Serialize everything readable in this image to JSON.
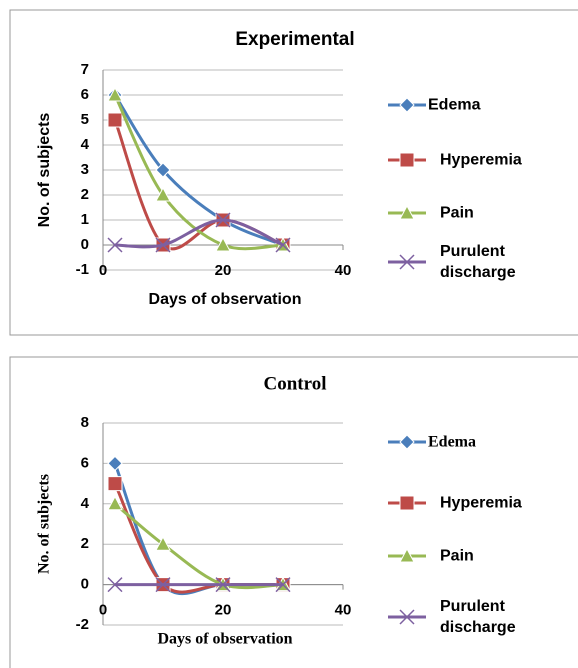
{
  "chart_data": [
    {
      "type": "line",
      "title": "Experimental",
      "xlabel": "Days of observation",
      "ylabel": "No. of subjects",
      "x": [
        2,
        10,
        20,
        30
      ],
      "xlim": [
        0,
        40
      ],
      "xticks": [
        0,
        20,
        40
      ],
      "ylim": [
        -1,
        7
      ],
      "yticks": [
        -1,
        0,
        1,
        2,
        3,
        4,
        5,
        6,
        7
      ],
      "grid": true,
      "smooth": true,
      "series": [
        {
          "name": "Edema",
          "color": "#4a7ebb",
          "marker": "diamond",
          "values": [
            6,
            3,
            1,
            0
          ]
        },
        {
          "name": "Hyperemia",
          "color": "#be4b48",
          "marker": "square",
          "values": [
            5,
            0,
            1,
            0
          ]
        },
        {
          "name": "Pain",
          "color": "#98b954",
          "marker": "triangle",
          "values": [
            6,
            2,
            0,
            0
          ]
        },
        {
          "name": "Purulent discharge",
          "color": "#7d60a0",
          "marker": "x",
          "values": [
            0,
            0,
            1,
            0
          ]
        }
      ]
    },
    {
      "type": "line",
      "title": "Control",
      "xlabel": "Days of observation",
      "ylabel": "No. of subjects",
      "x": [
        2,
        10,
        20,
        30
      ],
      "xlim": [
        0,
        40
      ],
      "xticks": [
        0,
        20,
        40
      ],
      "ylim": [
        -2,
        8
      ],
      "yticks": [
        -2,
        0,
        2,
        4,
        6,
        8
      ],
      "grid": true,
      "smooth": true,
      "series": [
        {
          "name": "Edema",
          "color": "#4a7ebb",
          "marker": "diamond",
          "values": [
            6,
            0,
            0,
            0
          ]
        },
        {
          "name": "Hyperemia",
          "color": "#be4b48",
          "marker": "square",
          "values": [
            5,
            0,
            0,
            0
          ]
        },
        {
          "name": "Pain",
          "color": "#98b954",
          "marker": "triangle",
          "values": [
            4,
            2,
            0,
            0
          ]
        },
        {
          "name": "Purulent discharge",
          "color": "#7d60a0",
          "marker": "x",
          "values": [
            0,
            0,
            0,
            0
          ]
        }
      ]
    }
  ]
}
